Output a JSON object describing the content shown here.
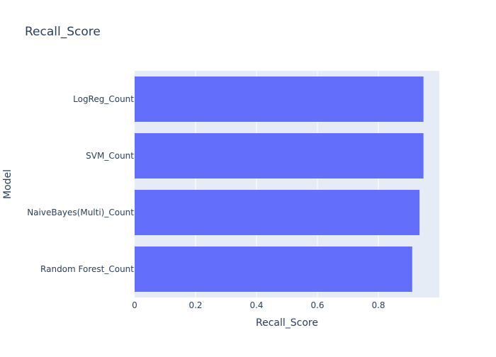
{
  "chart_data": {
    "type": "bar",
    "orientation": "horizontal",
    "title": "Recall_Score",
    "xlabel": "Recall_Score",
    "ylabel": "Model",
    "categories": [
      "LogReg_Count",
      "SVM_Count",
      "NaiveBayes(Multi)_Count",
      "Random Forest_Count"
    ],
    "values": [
      0.948,
      0.948,
      0.935,
      0.911
    ],
    "xlim": [
      0,
      1.0
    ],
    "xticks": [
      0,
      0.2,
      0.4,
      0.6,
      0.8
    ],
    "xtick_labels": [
      "0",
      "0.2",
      "0.4",
      "0.6",
      "0.8"
    ],
    "grid": true,
    "legend": "none"
  },
  "colors": {
    "bar": "#636efa",
    "plot_bg": "#e5ecf6",
    "grid": "#ffffff",
    "text": "#2a3f5f"
  }
}
